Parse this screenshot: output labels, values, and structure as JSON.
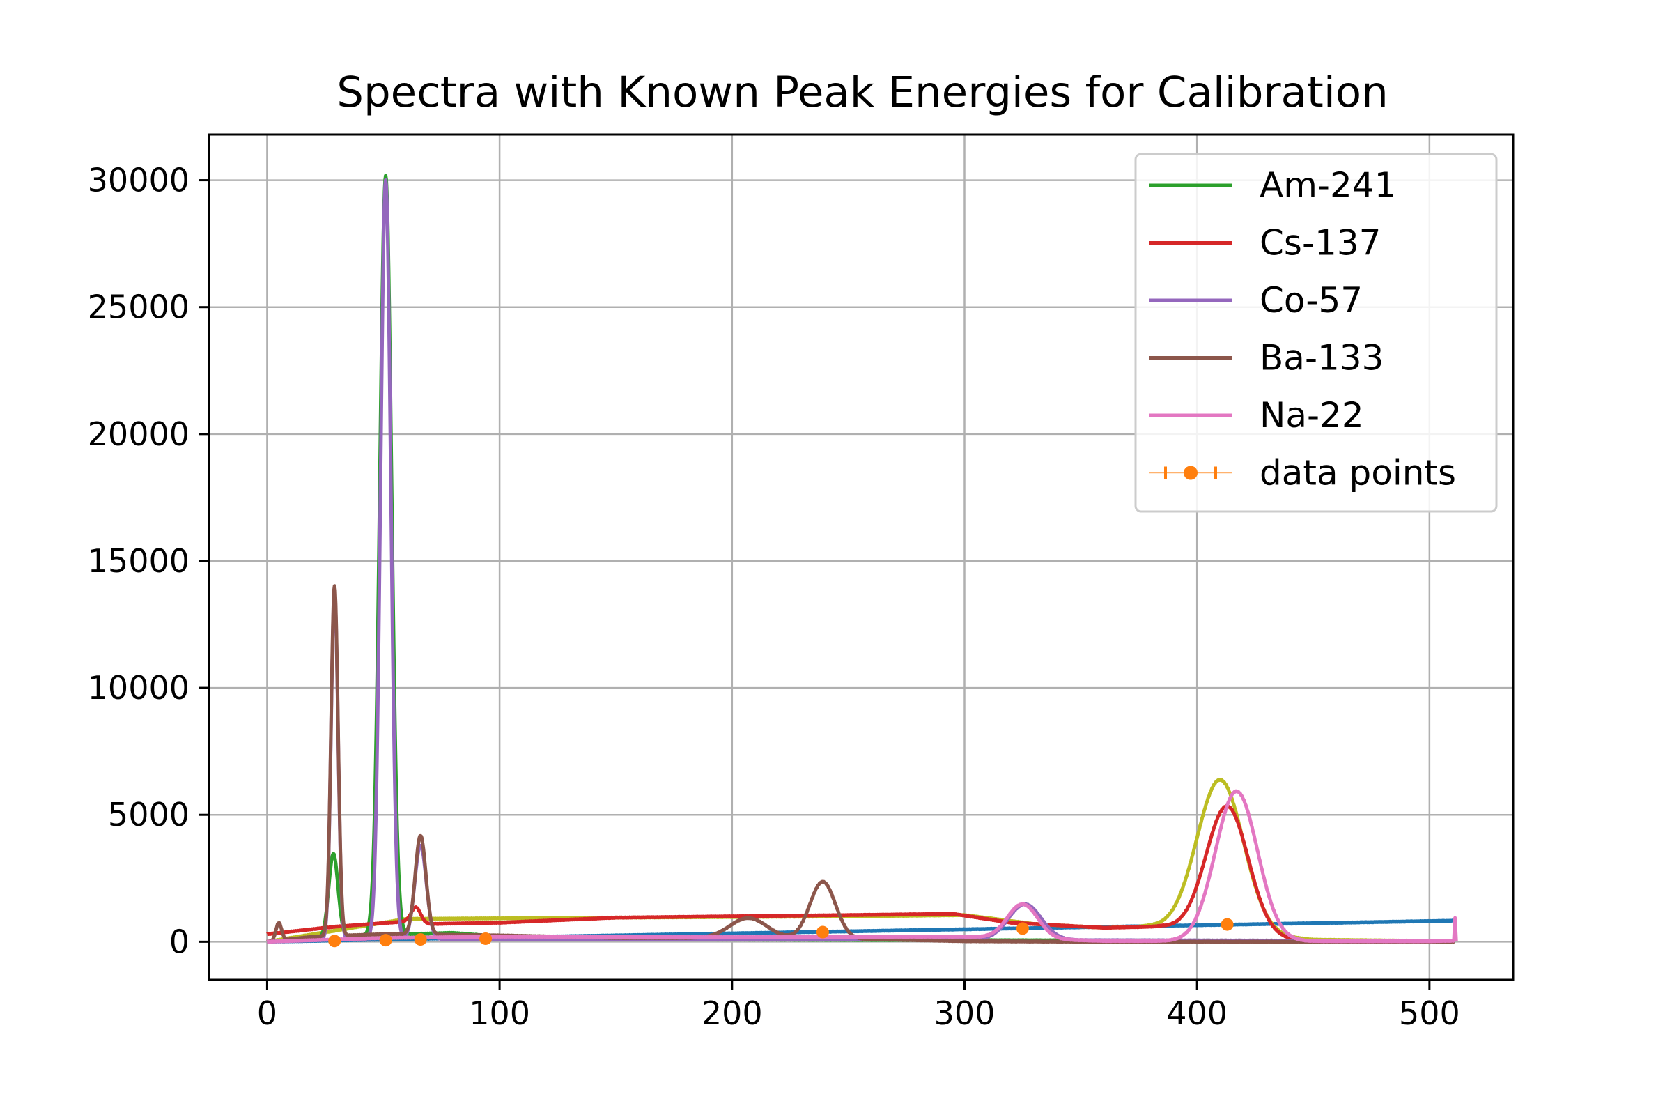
{
  "chart_data": {
    "type": "line",
    "title": "Spectra with Known Peak Energies for Calibration",
    "xlabel": "",
    "ylabel": "",
    "xlim": [
      -25,
      536
    ],
    "ylim": [
      -1500,
      31800
    ],
    "xticks": [
      0,
      100,
      200,
      300,
      400,
      500
    ],
    "yticks": [
      0,
      5000,
      10000,
      15000,
      20000,
      25000,
      30000
    ],
    "grid": true,
    "legend_position": "top-right",
    "series": [
      {
        "name": "",
        "color": "#1f77b4",
        "peaks": [],
        "points": [
          [
            0,
            0
          ],
          [
            100,
            170
          ],
          [
            200,
            330
          ],
          [
            300,
            490
          ],
          [
            400,
            650
          ],
          [
            511,
            830
          ]
        ]
      },
      {
        "name": "",
        "color": "#bcbd22",
        "peaks": [
          [
            410,
            6000,
            10
          ]
        ],
        "points": [
          [
            0,
            0
          ],
          [
            60,
            900
          ],
          [
            150,
            950
          ],
          [
            250,
            1000
          ],
          [
            300,
            1050
          ],
          [
            330,
            700
          ],
          [
            360,
            550
          ],
          [
            380,
            600
          ],
          [
            450,
            80
          ],
          [
            511,
            20
          ]
        ]
      },
      {
        "name": "Am-241",
        "color": "#2ca02c",
        "peaks": [
          [
            28.5,
            3300,
            2
          ],
          [
            51,
            29900,
            2.5
          ]
        ],
        "points": [
          [
            0,
            0
          ],
          [
            25,
            150
          ],
          [
            45,
            250
          ],
          [
            60,
            300
          ],
          [
            80,
            350
          ],
          [
            100,
            200
          ],
          [
            150,
            100
          ],
          [
            300,
            60
          ],
          [
            511,
            30
          ]
        ]
      },
      {
        "name": "Cs-137",
        "color": "#d62728",
        "peaks": [
          [
            64,
            600,
            2
          ],
          [
            413,
            5000,
            9
          ]
        ],
        "points": [
          [
            0,
            300
          ],
          [
            10,
            400
          ],
          [
            30,
            600
          ],
          [
            60,
            800
          ],
          [
            70,
            700
          ],
          [
            100,
            750
          ],
          [
            150,
            950
          ],
          [
            200,
            1000
          ],
          [
            250,
            1050
          ],
          [
            295,
            1100
          ],
          [
            320,
            750
          ],
          [
            360,
            550
          ],
          [
            385,
            600
          ],
          [
            445,
            40
          ],
          [
            511,
            30
          ]
        ]
      },
      {
        "name": "Co-57",
        "color": "#9467bd",
        "peaks": [
          [
            29,
            13700,
            1.5
          ],
          [
            51,
            29900,
            2.2
          ],
          [
            66,
            3700,
            2.5
          ],
          [
            326,
            1400,
            7
          ]
        ],
        "points": [
          [
            0,
            0
          ],
          [
            30,
            100
          ],
          [
            100,
            100
          ],
          [
            200,
            100
          ],
          [
            300,
            100
          ],
          [
            350,
            60
          ],
          [
            511,
            30
          ]
        ]
      },
      {
        "name": "Ba-133",
        "color": "#8c564b",
        "peaks": [
          [
            5,
            700,
            1.2
          ],
          [
            29,
            13800,
            1.5
          ],
          [
            66,
            3900,
            2.3
          ],
          [
            207,
            800,
            8
          ],
          [
            239,
            2250,
            5.5
          ]
        ],
        "points": [
          [
            0,
            0
          ],
          [
            20,
            200
          ],
          [
            50,
            300
          ],
          [
            100,
            250
          ],
          [
            150,
            150
          ],
          [
            180,
            150
          ],
          [
            260,
            100
          ],
          [
            300,
            20
          ],
          [
            350,
            0
          ],
          [
            511,
            0
          ]
        ]
      },
      {
        "name": "Na-22",
        "color": "#e377c2",
        "peaks": [
          [
            325,
            1350,
            6.5
          ],
          [
            417,
            5900,
            9
          ]
        ],
        "points": [
          [
            0,
            0
          ],
          [
            50,
            150
          ],
          [
            100,
            200
          ],
          [
            200,
            180
          ],
          [
            300,
            200
          ],
          [
            360,
            30
          ],
          [
            500,
            20
          ],
          [
            510.5,
            40
          ],
          [
            511,
            950
          ],
          [
            511.5,
            0
          ]
        ]
      }
    ],
    "data_points": {
      "name": "data points",
      "color": "#ff7f0e",
      "x": [
        29,
        51,
        66,
        94,
        239,
        325,
        413
      ],
      "y": [
        30,
        60,
        90,
        120,
        380,
        520,
        680
      ]
    }
  }
}
